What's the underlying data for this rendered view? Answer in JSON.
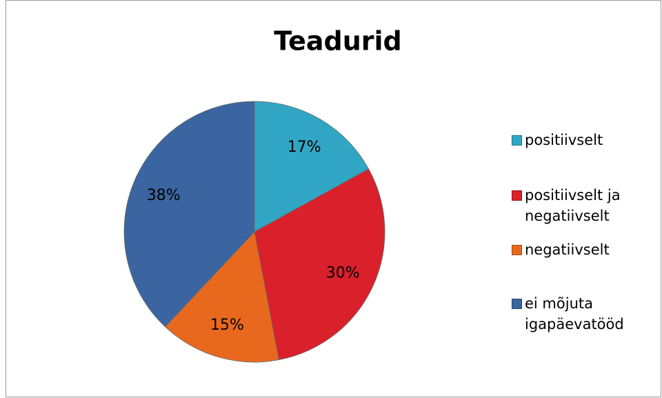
{
  "chart_data": {
    "type": "pie",
    "title": "Teadurid",
    "categories": [
      "positiivselt",
      "positiivselt ja negatiivselt",
      "negatiivselt",
      "ei mõjuta igapäevatööd"
    ],
    "values": [
      17,
      30,
      15,
      38
    ],
    "value_labels": [
      "17%",
      "30%",
      "15%",
      "38%"
    ],
    "colors": [
      "#31a6c4",
      "#d9202b",
      "#e8691e",
      "#3b65a0"
    ],
    "legend": "right"
  }
}
